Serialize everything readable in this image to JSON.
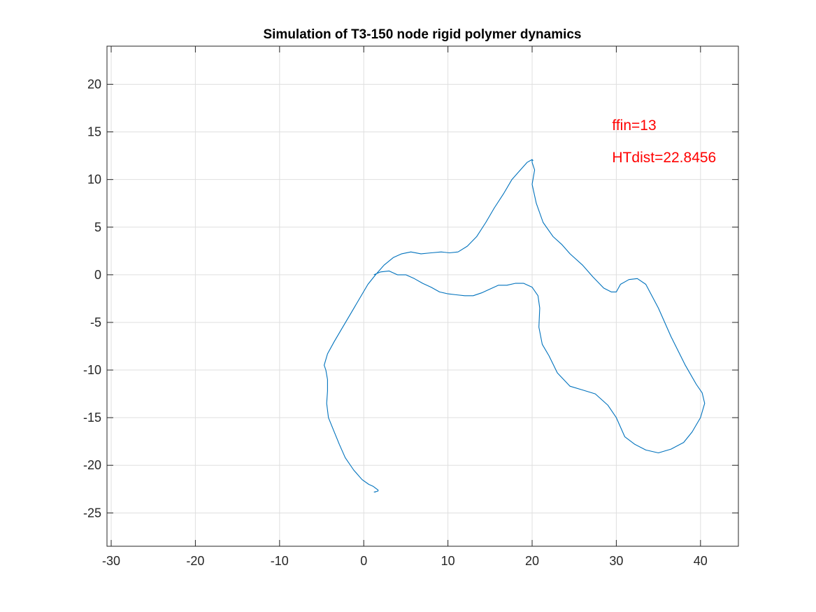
{
  "chart_data": {
    "type": "line",
    "title": "Simulation of T3-150 node rigid polymer dynamics",
    "xlabel": "",
    "ylabel": "",
    "xlim": [
      -30.5,
      44.5
    ],
    "ylim": [
      -28.5,
      24.0
    ],
    "xticks": [
      -30,
      -20,
      -10,
      0,
      10,
      20,
      30,
      40
    ],
    "yticks": [
      -25,
      -20,
      -15,
      -10,
      -5,
      0,
      5,
      10,
      15,
      20
    ],
    "xtick_labels": [
      "-30",
      "-20",
      "-10",
      "0",
      "10",
      "20",
      "30",
      "40"
    ],
    "ytick_labels": [
      "-25",
      "-20",
      "-15",
      "-10",
      "-5",
      "0",
      "5",
      "10",
      "15",
      "20"
    ],
    "grid": true,
    "legend": "none",
    "annotations": [
      {
        "text": "ffin=13",
        "x": 29.5,
        "y": 15.2,
        "color": "#ff0000"
      },
      {
        "text": "HTdist=22.8456",
        "x": 29.5,
        "y": 11.8,
        "color": "#ff0000"
      }
    ],
    "series": [
      {
        "color": "#0072bd",
        "x": [
          1.2,
          2.0,
          3.0,
          4.0,
          5.0,
          6.0,
          7.0,
          8.0,
          9.0,
          10.0,
          11.0,
          12.0,
          13.0,
          14.0,
          15.0,
          16.0,
          17.0,
          18.0,
          19.0,
          20.0,
          20.7,
          20.9,
          20.8,
          21.2,
          22.0,
          23.0,
          24.5,
          26.0,
          27.5,
          29.0,
          30.0,
          31.0,
          32.2,
          33.5,
          35.0,
          36.5,
          38.0,
          39.0,
          40.0,
          40.5,
          40.2,
          39.5,
          38.2,
          36.5,
          35.0,
          33.5,
          32.5,
          31.5,
          30.5,
          30.0,
          29.4,
          28.5,
          27.2,
          26.0,
          24.5,
          23.5,
          22.5,
          21.3,
          20.5,
          20.0,
          20.3,
          20.0,
          20.0,
          20.1,
          20.0,
          19.4,
          18.6,
          17.6,
          16.6,
          15.5,
          14.5,
          13.4,
          12.3,
          11.2,
          10.2,
          9.2,
          8.0,
          6.8,
          5.6,
          4.5,
          3.5,
          2.4,
          1.4,
          0.5,
          -0.5,
          -1.5,
          -2.5,
          -3.5,
          -4.3,
          -4.7,
          -4.5,
          -4.3,
          -4.3,
          -4.4,
          -4.2,
          -3.6,
          -2.9,
          -2.2,
          -1.2,
          -0.2,
          0.6,
          1.1,
          1.4,
          1.7,
          1.7,
          1.3,
          1.4,
          1.4,
          1.3,
          1.2,
          1.2
        ],
        "y": [
          0.0,
          0.3,
          0.4,
          0.0,
          0.0,
          -0.4,
          -0.9,
          -1.3,
          -1.8,
          -2.0,
          -2.1,
          -2.2,
          -2.2,
          -1.9,
          -1.5,
          -1.1,
          -1.1,
          -0.9,
          -0.9,
          -1.3,
          -2.2,
          -3.5,
          -5.5,
          -7.3,
          -8.5,
          -10.3,
          -11.7,
          -12.1,
          -12.5,
          -13.7,
          -15.0,
          -17.0,
          -17.8,
          -18.4,
          -18.7,
          -18.3,
          -17.6,
          -16.5,
          -15.0,
          -13.5,
          -12.4,
          -11.5,
          -9.5,
          -6.5,
          -3.5,
          -1.0,
          -0.4,
          -0.5,
          -1.0,
          -1.8,
          -1.8,
          -1.4,
          -0.2,
          1.0,
          2.2,
          3.2,
          4.0,
          5.5,
          7.5,
          9.5,
          11.0,
          11.8,
          12.1,
          12.0,
          12.1,
          11.8,
          11.0,
          10.0,
          8.5,
          7.0,
          5.5,
          4.0,
          3.0,
          2.4,
          2.3,
          2.4,
          2.3,
          2.2,
          2.4,
          2.2,
          1.8,
          1.0,
          0.0,
          -1.0,
          -2.5,
          -4.0,
          -5.5,
          -7.0,
          -8.3,
          -9.5,
          -10.0,
          -11.0,
          -12.2,
          -13.5,
          -15.0,
          -16.3,
          -17.8,
          -19.2,
          -20.5,
          -21.5,
          -22.0,
          -22.2,
          -22.4,
          -22.6,
          -22.7,
          -22.8,
          -22.8,
          -22.8,
          -22.8,
          -22.8,
          -22.8
        ]
      }
    ]
  }
}
